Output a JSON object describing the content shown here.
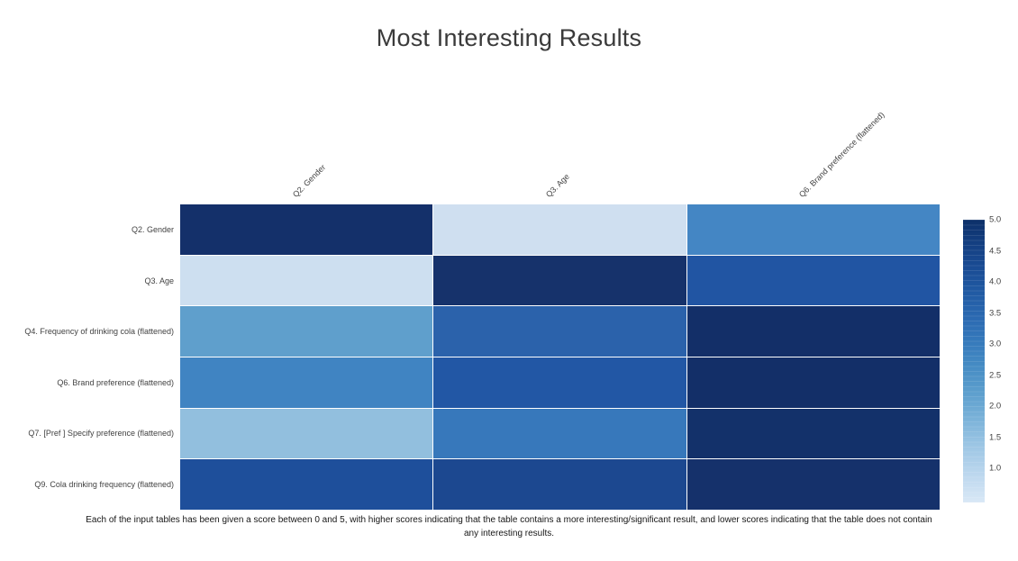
{
  "title": "Most Interesting Results",
  "caption": "Each of the input tables has been given a score between 0 and 5, with higher scores indicating that the table contains a more interesting/significant result, and lower scores indicating that the table does not contain any interesting results.",
  "chart_data": {
    "type": "heatmap",
    "title": "Most Interesting Results",
    "rows": [
      "Q2. Gender",
      "Q3. Age",
      "Q4. Frequency of drinking cola (flattened)",
      "Q6. Brand preference (flattened)",
      "Q7. [Pref ] Specify preference (flattened)",
      "Q9. Cola drinking frequency (flattened)"
    ],
    "columns": [
      "Q2. Gender",
      "Q3. Age",
      "Q6. Brand preference (flattened)"
    ],
    "values": [
      [
        5.0,
        0.9,
        3.0
      ],
      [
        0.9,
        5.0,
        3.9
      ],
      [
        2.5,
        3.7,
        5.0
      ],
      [
        3.0,
        3.9,
        5.0
      ],
      [
        1.8,
        3.3,
        5.0
      ],
      [
        4.1,
        4.3,
        5.0
      ]
    ],
    "cell_colors": [
      [
        "#14306a",
        "#cfdff0",
        "#4486c4"
      ],
      [
        "#cddff0",
        "#16326b",
        "#2155a3"
      ],
      [
        "#5f9fcc",
        "#2b62ab",
        "#132f68"
      ],
      [
        "#4084c2",
        "#2257a5",
        "#132f68"
      ],
      [
        "#92bfde",
        "#3778bb",
        "#13316a"
      ],
      [
        "#1e4f9b",
        "#1c4890",
        "#15316b"
      ]
    ],
    "colormap": "Blues",
    "value_range": [
      0,
      5
    ],
    "grid": false,
    "legend_position": "right",
    "colorbar": {
      "ticks": [
        "5.0",
        "4.5",
        "4.0",
        "3.5",
        "3.0",
        "2.5",
        "2.0",
        "1.5",
        "1.0"
      ],
      "gradient_top": "#0d3069",
      "gradient_bottom": "#d9e8f6"
    }
  }
}
